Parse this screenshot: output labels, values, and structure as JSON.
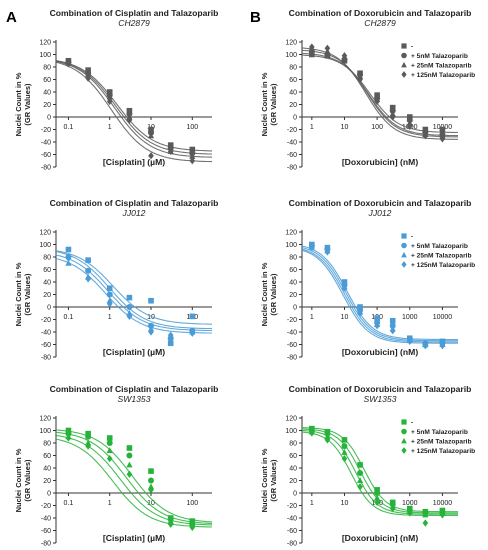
{
  "figure": {
    "panel_labels": [
      "A",
      "B"
    ],
    "legend_labels": [
      "-",
      "+ 5nM Talazoparib",
      "+ 25nM Talazoparib",
      "+ 125nM Talazoparib"
    ],
    "ylabel_line1": "Nuclei Count in %",
    "ylabel_line2": "(GR Values)"
  },
  "chart_data": [
    {
      "type": "scatter",
      "panel": "A",
      "title": "Combination of Cisplatin and Talazoparib",
      "subtitle": "CH2879",
      "xlabel": "[Cisplatin] (µM)",
      "xscale": "log",
      "xlim": [
        0.05,
        300
      ],
      "xticks": [
        0.1,
        1,
        10,
        100
      ],
      "xtick_labels": [
        "0.1",
        "1",
        "10",
        "100"
      ],
      "ylim": [
        -80,
        120
      ],
      "yticks": [
        -80,
        -60,
        -40,
        -20,
        0,
        20,
        40,
        60,
        80,
        100,
        120
      ],
      "color": "#5a5a5a",
      "legend_position": "none",
      "series": [
        {
          "name": "-",
          "marker": "square",
          "x": [
            0.1,
            0.3,
            1,
            3,
            10,
            30,
            100
          ],
          "y": [
            90,
            75,
            40,
            10,
            -20,
            -45,
            -52
          ],
          "fit": {
            "top": 95,
            "bottom": -55,
            "ec50": 1.5,
            "hill": 1.0
          }
        },
        {
          "name": "+ 5nM Talazoparib",
          "marker": "circle",
          "x": [
            0.1,
            0.3,
            1,
            3,
            10,
            30,
            100
          ],
          "y": [
            88,
            70,
            35,
            5,
            -25,
            -50,
            -58
          ],
          "fit": {
            "top": 95,
            "bottom": -60,
            "ec50": 1.4,
            "hill": 1.0
          }
        },
        {
          "name": "+ 25nM Talazoparib",
          "marker": "triangle",
          "x": [
            0.1,
            0.3,
            1,
            3,
            10,
            30,
            100
          ],
          "y": [
            87,
            68,
            32,
            0,
            -30,
            -55,
            -63
          ],
          "fit": {
            "top": 95,
            "bottom": -65,
            "ec50": 1.3,
            "hill": 1.0
          }
        },
        {
          "name": "+ 125nM Talazoparib",
          "marker": "diamond",
          "x": [
            0.1,
            0.3,
            1,
            3,
            10,
            30,
            100
          ],
          "y": [
            85,
            62,
            25,
            -5,
            -62,
            -55,
            -70
          ],
          "fit": {
            "top": 95,
            "bottom": -72,
            "ec50": 1.1,
            "hill": 1.0
          }
        }
      ]
    },
    {
      "type": "scatter",
      "panel": "B",
      "title": "Combination of Doxorubicin and Talazoparib",
      "subtitle": "CH2879",
      "xlabel": "[Doxorubicin] (nM)",
      "xscale": "log",
      "xlim": [
        0.5,
        30000
      ],
      "xticks": [
        1,
        10,
        100,
        1000,
        10000
      ],
      "xtick_labels": [
        "1",
        "10",
        "100",
        "1000",
        "10000"
      ],
      "ylim": [
        -80,
        120
      ],
      "yticks": [
        -80,
        -60,
        -40,
        -20,
        0,
        20,
        40,
        60,
        80,
        100,
        120
      ],
      "color": "#5a5a5a",
      "legend_position": "top-right",
      "series": [
        {
          "name": "-",
          "marker": "square",
          "x": [
            1,
            3,
            10,
            30,
            100,
            300,
            1000,
            3000,
            10000
          ],
          "y": [
            100,
            98,
            90,
            70,
            35,
            15,
            0,
            -20,
            -20
          ],
          "fit": {
            "top": 100,
            "bottom": -25,
            "ec50": 60,
            "hill": 1.0
          }
        },
        {
          "name": "+ 5nM Talazoparib",
          "marker": "circle",
          "x": [
            1,
            3,
            10,
            30,
            100,
            300,
            1000,
            3000,
            10000
          ],
          "y": [
            105,
            100,
            92,
            68,
            30,
            10,
            -5,
            -25,
            -28
          ],
          "fit": {
            "top": 103,
            "bottom": -30,
            "ec50": 55,
            "hill": 1.0
          }
        },
        {
          "name": "+ 25nM Talazoparib",
          "marker": "triangle",
          "x": [
            1,
            3,
            10,
            30,
            100,
            300,
            1000,
            3000,
            10000
          ],
          "y": [
            110,
            105,
            95,
            65,
            28,
            5,
            -10,
            -28,
            -30
          ],
          "fit": {
            "top": 108,
            "bottom": -32,
            "ec50": 50,
            "hill": 1.0
          }
        },
        {
          "name": "+ 125nM Talazoparib",
          "marker": "diamond",
          "x": [
            1,
            3,
            10,
            30,
            100,
            300,
            1000,
            3000,
            10000
          ],
          "y": [
            112,
            110,
            98,
            60,
            25,
            0,
            -15,
            -30,
            -35
          ],
          "fit": {
            "top": 112,
            "bottom": -36,
            "ec50": 45,
            "hill": 1.0
          }
        }
      ]
    },
    {
      "type": "scatter",
      "panel": "A",
      "title": "Combination of Cisplatin and Talazoparib",
      "subtitle": "JJ012",
      "xlabel": "[Cisplatin] (µM)",
      "xscale": "log",
      "xlim": [
        0.05,
        300
      ],
      "xticks": [
        0.1,
        1,
        10,
        100
      ],
      "xtick_labels": [
        "0.1",
        "1",
        "10",
        "100"
      ],
      "ylim": [
        -80,
        120
      ],
      "yticks": [
        -80,
        -60,
        -40,
        -20,
        0,
        20,
        40,
        60,
        80,
        100,
        120
      ],
      "color": "#4a9bd6",
      "legend_position": "none",
      "series": [
        {
          "name": "-",
          "marker": "square",
          "x": [
            0.1,
            0.3,
            1,
            3,
            10,
            30,
            100
          ],
          "y": [
            92,
            75,
            30,
            15,
            10,
            -58,
            -15
          ],
          "fit": {
            "top": 95,
            "bottom": -28,
            "ec50": 1.2,
            "hill": 1.0
          }
        },
        {
          "name": "+ 5nM Talazoparib",
          "marker": "circle",
          "x": [
            0.1,
            0.3,
            1,
            3,
            10,
            30,
            100
          ],
          "y": [
            80,
            58,
            20,
            0,
            -30,
            -50,
            -38
          ],
          "fit": {
            "top": 95,
            "bottom": -35,
            "ec50": 1.0,
            "hill": 1.0
          }
        },
        {
          "name": "+ 25nM Talazoparib",
          "marker": "triangle",
          "x": [
            0.1,
            0.3,
            1,
            3,
            10,
            30,
            100
          ],
          "y": [
            70,
            48,
            10,
            -10,
            -35,
            -48,
            -40
          ],
          "fit": {
            "top": 90,
            "bottom": -38,
            "ec50": 0.9,
            "hill": 1.0
          }
        },
        {
          "name": "+ 125nM Talazoparib",
          "marker": "diamond",
          "x": [
            0.1,
            0.3,
            1,
            3,
            10,
            30,
            100
          ],
          "y": [
            78,
            45,
            5,
            -15,
            -40,
            -45,
            -42
          ],
          "fit": {
            "top": 85,
            "bottom": -42,
            "ec50": 0.8,
            "hill": 1.0
          }
        }
      ]
    },
    {
      "type": "scatter",
      "panel": "B",
      "title": "Combination of Doxorubicin and Talazoparib",
      "subtitle": "JJ012",
      "xlabel": "[Doxorubicin] (nM)",
      "xscale": "log",
      "xlim": [
        0.5,
        30000
      ],
      "xticks": [
        1,
        10,
        100,
        1000,
        10000
      ],
      "xtick_labels": [
        "1",
        "10",
        "100",
        "1000",
        "10000"
      ],
      "ylim": [
        -80,
        120
      ],
      "yticks": [
        -80,
        -60,
        -40,
        -20,
        0,
        20,
        40,
        60,
        80,
        100,
        120
      ],
      "color": "#4a9bd6",
      "legend_position": "top-right",
      "series": [
        {
          "name": "-",
          "marker": "square",
          "x": [
            1,
            3,
            10,
            30,
            100,
            300,
            1000,
            3000,
            10000
          ],
          "y": [
            100,
            95,
            40,
            0,
            -18,
            -22,
            -50,
            -60,
            -55
          ],
          "fit": {
            "top": 102,
            "bottom": -52,
            "ec50": 12,
            "hill": 1.1
          }
        },
        {
          "name": "+ 5nM Talazoparib",
          "marker": "circle",
          "x": [
            1,
            3,
            10,
            30,
            100,
            300,
            1000,
            3000,
            10000
          ],
          "y": [
            98,
            92,
            35,
            -5,
            -25,
            -30,
            -52,
            -58,
            -58
          ],
          "fit": {
            "top": 100,
            "bottom": -54,
            "ec50": 11,
            "hill": 1.1
          }
        },
        {
          "name": "+ 25nM Talazoparib",
          "marker": "triangle",
          "x": [
            1,
            3,
            10,
            30,
            100,
            300,
            1000,
            3000,
            10000
          ],
          "y": [
            96,
            90,
            32,
            -8,
            -28,
            -35,
            -53,
            -60,
            -60
          ],
          "fit": {
            "top": 98,
            "bottom": -56,
            "ec50": 10,
            "hill": 1.1
          }
        },
        {
          "name": "+ 125nM Talazoparib",
          "marker": "diamond",
          "x": [
            1,
            3,
            10,
            30,
            100,
            300,
            1000,
            3000,
            10000
          ],
          "y": [
            95,
            88,
            30,
            -10,
            -30,
            -38,
            -55,
            -62,
            -62
          ],
          "fit": {
            "top": 97,
            "bottom": -58,
            "ec50": 9,
            "hill": 1.1
          }
        }
      ]
    },
    {
      "type": "scatter",
      "panel": "A",
      "title": "Combination of Cisplatin and Talazoparib",
      "subtitle": "SW1353",
      "xlabel": "[Cisplatin] (µM)",
      "xscale": "log",
      "xlim": [
        0.05,
        300
      ],
      "xticks": [
        0.1,
        1,
        10,
        100
      ],
      "xtick_labels": [
        "0.1",
        "1",
        "10",
        "100"
      ],
      "ylim": [
        -80,
        120
      ],
      "yticks": [
        -80,
        -60,
        -40,
        -20,
        0,
        20,
        40,
        60,
        80,
        100,
        120
      ],
      "color": "#27b33a",
      "legend_position": "none",
      "series": [
        {
          "name": "-",
          "marker": "square",
          "x": [
            0.1,
            0.3,
            1,
            3,
            10,
            30,
            100
          ],
          "y": [
            100,
            95,
            88,
            72,
            35,
            -40,
            -45
          ],
          "fit": {
            "top": 103,
            "bottom": -48,
            "ec50": 3.5,
            "hill": 1.0
          }
        },
        {
          "name": "+ 5nM Talazoparib",
          "marker": "circle",
          "x": [
            0.1,
            0.3,
            1,
            3,
            10,
            30,
            100
          ],
          "y": [
            95,
            90,
            80,
            60,
            20,
            -42,
            -50
          ],
          "fit": {
            "top": 100,
            "bottom": -50,
            "ec50": 2.5,
            "hill": 1.0
          }
        },
        {
          "name": "+ 25nM Talazoparib",
          "marker": "triangle",
          "x": [
            0.1,
            0.3,
            1,
            3,
            10,
            30,
            100
          ],
          "y": [
            90,
            80,
            68,
            45,
            10,
            -45,
            -48
          ],
          "fit": {
            "top": 96,
            "bottom": -52,
            "ec50": 1.8,
            "hill": 1.0
          }
        },
        {
          "name": "+ 125nM Talazoparib",
          "marker": "diamond",
          "x": [
            0.1,
            0.3,
            1,
            3,
            10,
            30,
            100
          ],
          "y": [
            88,
            75,
            55,
            30,
            5,
            -50,
            -55
          ],
          "fit": {
            "top": 92,
            "bottom": -55,
            "ec50": 1.2,
            "hill": 1.0
          }
        }
      ]
    },
    {
      "type": "scatter",
      "panel": "B",
      "title": "Combination of Doxorubicin and Talazoparib",
      "subtitle": "SW1353",
      "xlabel": "[Doxorubicin] (nM)",
      "xscale": "log",
      "xlim": [
        0.5,
        30000
      ],
      "xticks": [
        1,
        10,
        100,
        1000,
        10000
      ],
      "xtick_labels": [
        "1",
        "10",
        "100",
        "1000",
        "10000"
      ],
      "ylim": [
        -80,
        120
      ],
      "yticks": [
        -80,
        -60,
        -40,
        -20,
        0,
        20,
        40,
        60,
        80,
        100,
        120
      ],
      "color": "#27b33a",
      "legend_position": "top-right",
      "series": [
        {
          "name": "-",
          "marker": "square",
          "x": [
            1,
            3,
            10,
            30,
            100,
            300,
            1000,
            3000,
            10000
          ],
          "y": [
            103,
            98,
            85,
            45,
            5,
            -15,
            -25,
            -30,
            -28
          ],
          "fit": {
            "top": 105,
            "bottom": -30,
            "ec50": 40,
            "hill": 1.3
          }
        },
        {
          "name": "+ 5nM Talazoparib",
          "marker": "circle",
          "x": [
            1,
            3,
            10,
            30,
            100,
            300,
            1000,
            3000,
            10000
          ],
          "y": [
            100,
            95,
            75,
            32,
            0,
            -18,
            -28,
            -32,
            -30
          ],
          "fit": {
            "top": 103,
            "bottom": -32,
            "ec50": 30,
            "hill": 1.3
          }
        },
        {
          "name": "+ 25nM Talazoparib",
          "marker": "triangle",
          "x": [
            1,
            3,
            10,
            30,
            100,
            300,
            1000,
            3000,
            10000
          ],
          "y": [
            98,
            90,
            65,
            20,
            -8,
            -22,
            -30,
            -35,
            -32
          ],
          "fit": {
            "top": 101,
            "bottom": -34,
            "ec50": 22,
            "hill": 1.3
          }
        },
        {
          "name": "+ 125nM Talazoparib",
          "marker": "diamond",
          "x": [
            1,
            3,
            10,
            30,
            100,
            300,
            1000,
            3000,
            10000
          ],
          "y": [
            96,
            85,
            55,
            10,
            -15,
            -25,
            -32,
            -48,
            -35
          ],
          "fit": {
            "top": 99,
            "bottom": -36,
            "ec50": 16,
            "hill": 1.3
          }
        }
      ]
    }
  ]
}
